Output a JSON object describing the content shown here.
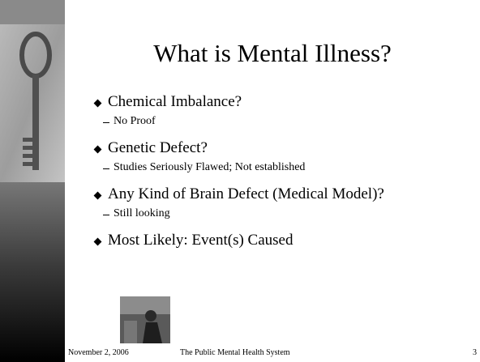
{
  "slide": {
    "title": "What is Mental Illness?",
    "bullets": [
      {
        "text": "Chemical Imbalance?",
        "sub": [
          "No Proof"
        ]
      },
      {
        "text": "Genetic Defect?",
        "sub": [
          "Studies Seriously Flawed; Not established"
        ]
      },
      {
        "text": "Any Kind of Brain Defect (Medical Model)?",
        "sub": [
          "Still looking"
        ]
      },
      {
        "text": "Most Likely: Event(s) Caused",
        "sub": []
      }
    ],
    "footer": {
      "date": "November 2, 2006",
      "center": "The Public Mental Health System",
      "page": "3"
    }
  }
}
